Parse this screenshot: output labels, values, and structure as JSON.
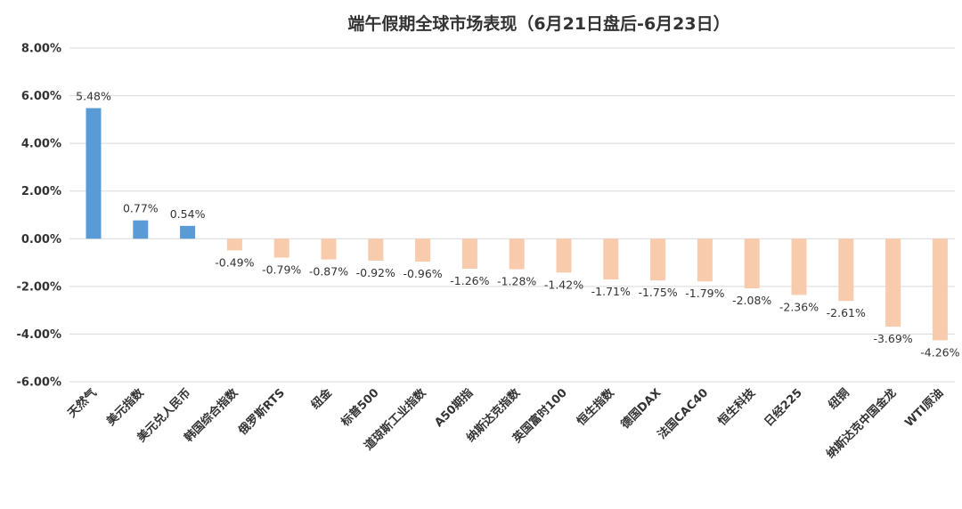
{
  "chart_data": {
    "type": "bar",
    "title": "端午假期全球市场表现（6月21日盘后-6月23日）",
    "xlabel": "",
    "ylabel": "",
    "ylim": [
      -6,
      8
    ],
    "yticks": [
      8,
      6,
      4,
      2,
      0,
      -2,
      -4,
      -6
    ],
    "ytick_labels": [
      "8.00%",
      "6.00%",
      "4.00%",
      "2.00%",
      "0.00%",
      "-2.00%",
      "-4.00%",
      "-6.00%"
    ],
    "grid": true,
    "legend": "none",
    "colors": {
      "positive": "#5b9bd5",
      "negative": "#f8cbad"
    },
    "categories": [
      "天然气",
      "美元指数",
      "美元兑人民币",
      "韩国综合指数",
      "俄罗斯RTS",
      "纽金",
      "标普500",
      "道琼斯工业指数",
      "A50期指",
      "纳斯达克指数",
      "英国富时100",
      "恒生指数",
      "德国DAX",
      "法国CAC40",
      "恒生科技",
      "日经225",
      "纽铜",
      "纳斯达克中国金龙",
      "WTI原油"
    ],
    "values": [
      5.48,
      0.77,
      0.54,
      -0.49,
      -0.79,
      -0.87,
      -0.92,
      -0.96,
      -1.26,
      -1.28,
      -1.42,
      -1.71,
      -1.75,
      -1.79,
      -2.08,
      -2.36,
      -2.61,
      -3.69,
      -4.26
    ],
    "data_labels": [
      "5.48%",
      "0.77%",
      "0.54%",
      "-0.49%",
      "-0.79%",
      "-0.87%",
      "-0.92%",
      "-0.96%",
      "-1.26%",
      "-1.28%",
      "-1.42%",
      "-1.71%",
      "-1.75%",
      "-1.79%",
      "-2.08%",
      "-2.36%",
      "-2.61%",
      "-3.69%",
      "-4.26%"
    ]
  }
}
